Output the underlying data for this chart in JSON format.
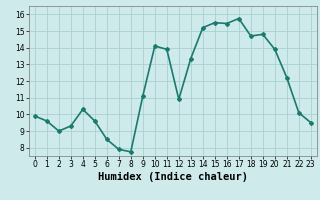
{
  "x": [
    0,
    1,
    2,
    3,
    4,
    5,
    6,
    7,
    8,
    9,
    10,
    11,
    12,
    13,
    14,
    15,
    16,
    17,
    18,
    19,
    20,
    21,
    22,
    23
  ],
  "y": [
    9.9,
    9.6,
    9.0,
    9.3,
    10.3,
    9.6,
    8.5,
    7.9,
    7.75,
    11.1,
    14.1,
    13.9,
    10.9,
    13.35,
    15.2,
    15.5,
    15.45,
    15.75,
    14.7,
    14.8,
    13.9,
    12.2,
    10.1,
    9.5
  ],
  "xlim": [
    -0.5,
    23.5
  ],
  "ylim": [
    7.5,
    16.5
  ],
  "yticks": [
    8,
    9,
    10,
    11,
    12,
    13,
    14,
    15,
    16
  ],
  "xticks": [
    0,
    1,
    2,
    3,
    4,
    5,
    6,
    7,
    8,
    9,
    10,
    11,
    12,
    13,
    14,
    15,
    16,
    17,
    18,
    19,
    20,
    21,
    22,
    23
  ],
  "xlabel": "Humidex (Indice chaleur)",
  "line_color": "#1a7a6e",
  "marker": "D",
  "marker_size": 2.0,
  "bg_color": "#ceeaea",
  "grid_color": "#a8d0d0",
  "tick_label_fontsize": 5.5,
  "xlabel_fontsize": 7.5,
  "line_width": 1.2
}
